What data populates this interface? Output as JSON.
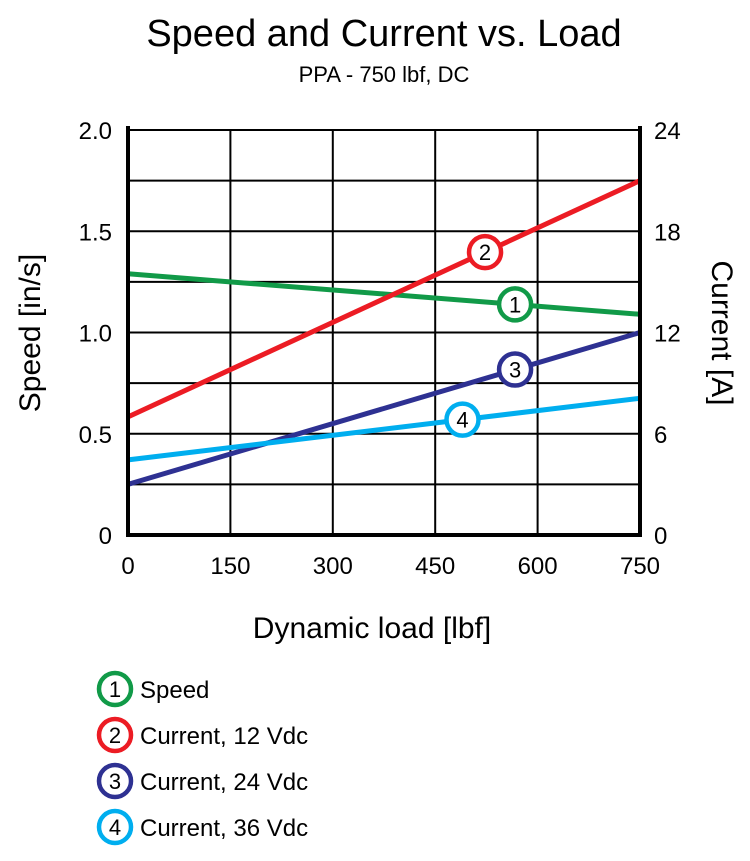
{
  "chart_data": {
    "type": "line",
    "title": "Speed and Current vs. Load",
    "subtitle": "PPA - 750 lbf, DC",
    "xlabel": "Dynamic load [lbf]",
    "ylabel": "Speed [in/s]",
    "y2label": "Current [A]",
    "xlim": [
      0,
      750
    ],
    "ylim": [
      0,
      2.0
    ],
    "y2lim": [
      0,
      24
    ],
    "xticks": [
      "0",
      "150",
      "300",
      "450",
      "600",
      "750"
    ],
    "yticks": [
      "0",
      "0.5",
      "1.0",
      "1.5",
      "2.0"
    ],
    "y2ticks": [
      "0",
      "6",
      "12",
      "18",
      "24"
    ],
    "grid": true,
    "series": [
      {
        "name": "Speed",
        "marker": "1",
        "axis": "left",
        "color": "#119a48",
        "x": [
          0,
          750
        ],
        "y": [
          1.29,
          1.09
        ],
        "label_x": 567
      },
      {
        "name": "Current, 12 Vdc",
        "marker": "2",
        "axis": "right",
        "color": "#ec1c24",
        "x": [
          0,
          750
        ],
        "y": [
          7.0,
          21.0
        ],
        "label_x": 523
      },
      {
        "name": "Current, 24 Vdc",
        "marker": "3",
        "axis": "right",
        "color": "#2e3192",
        "x": [
          0,
          750
        ],
        "y": [
          3.0,
          12.0
        ],
        "label_x": 567
      },
      {
        "name": "Current, 36 Vdc",
        "marker": "4",
        "axis": "right",
        "color": "#00aeef",
        "x": [
          0,
          750
        ],
        "y": [
          4.45,
          8.1
        ],
        "label_x": 490
      }
    ],
    "legend_position": "bottom-left"
  }
}
